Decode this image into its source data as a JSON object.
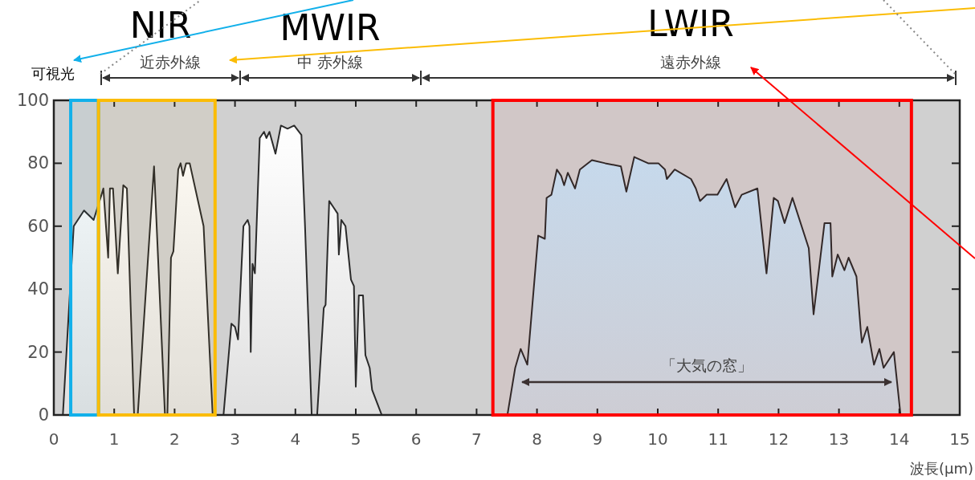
{
  "chart_data": {
    "type": "area",
    "xlabel": "波長(μm)",
    "xlim": [
      0,
      15
    ],
    "xticks": [
      0,
      1,
      2,
      3,
      4,
      5,
      6,
      7,
      8,
      9,
      10,
      11,
      12,
      13,
      14,
      15
    ],
    "ylim": [
      0,
      100
    ],
    "yticks": [
      0,
      20,
      40,
      60,
      80,
      100
    ],
    "grid": false,
    "marker": "none",
    "line_style": "solid",
    "annotations": [
      "NIR",
      "MWIR",
      "LWIR",
      "可視光",
      "近赤外線",
      "中 赤外線",
      "遠赤外線",
      "「大気の窓」"
    ],
    "series": [
      {
        "color": "#ffffff",
        "x": [
          0.15,
          0.33,
          0.5,
          0.66,
          0.79,
          0.82,
          0.9,
          0.93,
          0.98,
          1.06,
          1.15,
          1.21,
          1.33,
          1.39,
          1.66,
          1.84,
          1.88,
          1.94,
          1.98,
          2.06,
          2.1,
          2.14,
          2.19,
          2.25,
          2.48,
          2.63,
          2.81,
          2.94,
          3.0,
          3.05,
          3.14,
          3.21,
          3.24,
          3.26,
          3.29,
          3.33,
          3.41,
          3.48,
          3.52,
          3.57,
          3.67,
          3.76,
          3.87,
          3.98,
          4.1,
          4.16,
          4.27,
          4.36,
          4.47,
          4.5,
          4.56,
          4.63,
          4.7,
          4.72,
          4.76,
          4.83,
          4.92,
          4.97,
          5.0,
          5.05,
          5.12,
          5.16,
          5.23,
          5.27,
          5.43
        ],
        "values": [
          0,
          60,
          65,
          62,
          70,
          72,
          50,
          72,
          72,
          45,
          73,
          72,
          0,
          0,
          79,
          0,
          0,
          50,
          52,
          78,
          80,
          76,
          80,
          80,
          60,
          0,
          0,
          29,
          28,
          24,
          60,
          62,
          60,
          20,
          48,
          45,
          88,
          90,
          88,
          90,
          83,
          92,
          91,
          92,
          89,
          60,
          0,
          0,
          34,
          35,
          68,
          66,
          64,
          51,
          62,
          60,
          43,
          41,
          9,
          38,
          38,
          19,
          15,
          8,
          0
        ]
      },
      {
        "color": "#c4e2f6",
        "x": [
          7.51,
          7.64,
          7.73,
          7.84,
          8.02,
          8.13,
          8.16,
          8.24,
          8.33,
          8.4,
          8.45,
          8.51,
          8.63,
          8.71,
          8.91,
          9.13,
          9.39,
          9.48,
          9.61,
          9.84,
          10.01,
          10.12,
          10.15,
          10.28,
          10.55,
          10.63,
          10.7,
          10.81,
          10.99,
          11.14,
          11.28,
          11.39,
          11.65,
          11.8,
          11.92,
          11.99,
          12.1,
          12.23,
          12.5,
          12.58,
          12.76,
          12.86,
          12.89,
          12.98,
          13.09,
          13.16,
          13.29,
          13.36,
          13.38,
          13.47,
          13.58,
          13.67,
          13.74,
          13.91,
          14.02
        ],
        "values": [
          0,
          15,
          21,
          16,
          57,
          56,
          69,
          70,
          78,
          76,
          73,
          77,
          72,
          78,
          81,
          80,
          79,
          71,
          82,
          80,
          80,
          78,
          75,
          78,
          75,
          72,
          68,
          70,
          70,
          75,
          66,
          70,
          72,
          45,
          69,
          68,
          61,
          69,
          53,
          32,
          61,
          61,
          44,
          51,
          46,
          50,
          44,
          27,
          23,
          28,
          16,
          21,
          15,
          20,
          0
        ]
      }
    ],
    "bands": [
      {
        "axis": "x",
        "from": 0.28,
        "to": 0.74,
        "color": "#12b0ea"
      },
      {
        "axis": "x",
        "from": 0.74,
        "to": 2.67,
        "color": "#fbbc05"
      },
      {
        "axis": "x",
        "from": 7.27,
        "to": 14.2,
        "color": "#ff0000"
      }
    ]
  }
}
